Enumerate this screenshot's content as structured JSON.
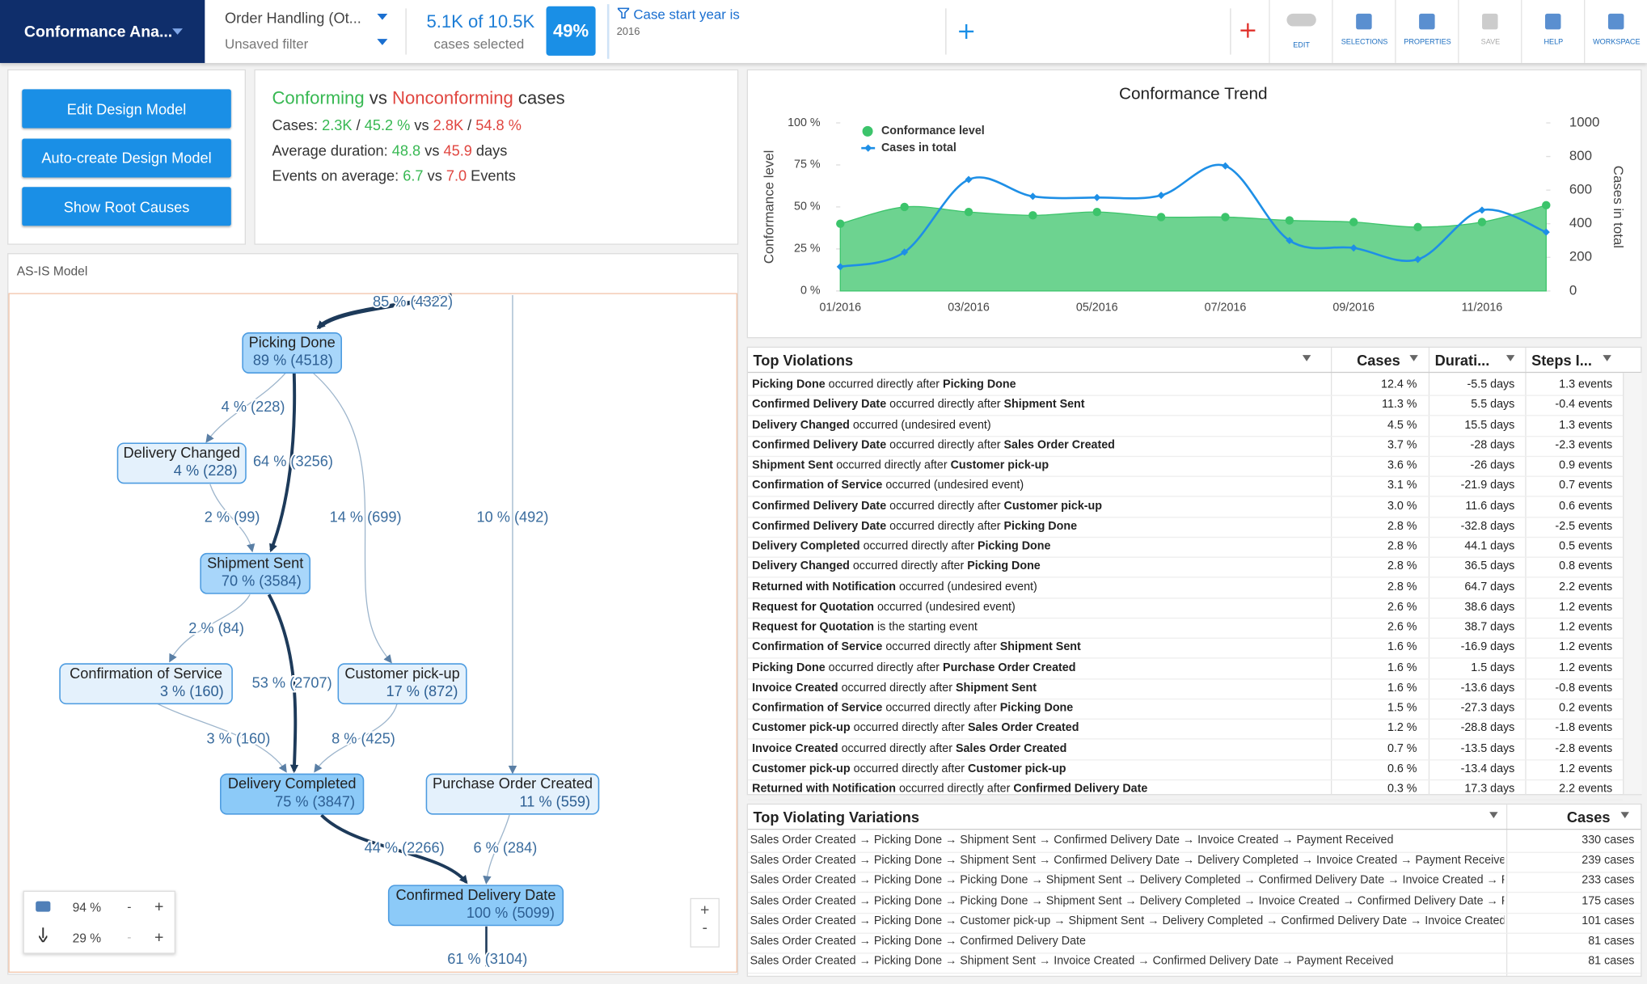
{
  "toolbar": {
    "app_title": "Conformance Ana...",
    "filter_name": "Order Handling (Ot...",
    "filter_state": "Unsaved filter",
    "cases": "5.1K of 10.5K",
    "cases_caption": "cases selected",
    "percent": "49%",
    "filter_label": "Case start year is",
    "filter_value": "2016",
    "buttons": [
      "EDIT",
      "SELECTIONS",
      "PROPERTIES",
      "SAVE",
      "HELP",
      "WORKSPACE"
    ]
  },
  "actions": [
    "Edit Design Model",
    "Auto-create Design Model",
    "Show Root Causes"
  ],
  "summary": {
    "conforming": "Conforming",
    "vs": "vs",
    "nonconforming": "Nonconforming",
    "suffix": "cases",
    "slash": "/",
    "rows": [
      {
        "label": "Cases:",
        "conforming": [
          "2.3K",
          "45.2 %"
        ],
        "nonconforming": [
          "2.8K",
          "54.8 %"
        ]
      },
      {
        "label": "Average duration:",
        "conforming": [
          "48.8"
        ],
        "nonconforming": [
          "45.9"
        ],
        "unit": "days"
      },
      {
        "label": "Events on average:",
        "conforming": [
          "6.7"
        ],
        "nonconforming": [
          "7.0"
        ],
        "unit": "Events"
      }
    ]
  },
  "model": {
    "title": "AS-IS Model",
    "nodes": [
      {
        "label": "Picking Done",
        "stat": "89 % (4518)"
      },
      {
        "label": "Delivery Changed",
        "stat": "4 % (228)"
      },
      {
        "label": "Shipment Sent",
        "stat": "70 % (3584)"
      },
      {
        "label": "Confirmation of Service",
        "stat": "3 % (160)"
      },
      {
        "label": "Customer pick-up",
        "stat": "17 % (872)"
      },
      {
        "label": "Delivery Completed",
        "stat": "75 % (3847)"
      },
      {
        "label": "Purchase Order Created",
        "stat": "11 % (559)"
      },
      {
        "label": "Confirmed Delivery Date",
        "stat": "100 % (5099)"
      }
    ],
    "edges": [
      "85 % (4322)",
      "4 % (228)",
      "64 % (3256)",
      "14 % (699)",
      "10 % (492)",
      "2 % (99)",
      "2 % (84)",
      "53 % (2707)",
      "3 % (160)",
      "8 % (425)",
      "44 % (2266)",
      "6 % (284)",
      "61 % (3104)"
    ],
    "controls": {
      "nodes_pct": "94 %",
      "edges_pct": "29 %",
      "minus": "-",
      "plus": "+"
    }
  },
  "chart_data": {
    "type": "line",
    "title": "Conformance Trend",
    "categories": [
      "01/2016",
      null,
      "03/2016",
      null,
      "05/2016",
      null,
      "07/2016",
      null,
      "09/2016",
      null,
      "11/2016",
      null
    ],
    "y_label": "Conformance level",
    "y2_label": "Cases in total",
    "legend": "upper left",
    "ylim": [
      0,
      100
    ],
    "yticks": [
      {
        "value": 0,
        "label": "0 %"
      },
      {
        "value": 25,
        "label": "25 %"
      },
      {
        "value": 50,
        "label": "50 %"
      },
      {
        "value": 75,
        "label": "75 %"
      },
      {
        "value": 100,
        "label": "100 %"
      }
    ],
    "y2lim": [
      0,
      1000
    ],
    "y2ticks": [
      0,
      200,
      400,
      600,
      800,
      1000
    ],
    "series": [
      {
        "name": "Conformance level",
        "color": "#3cc46b",
        "area": true,
        "values": [
          40,
          50,
          47,
          45,
          47,
          44,
          44,
          42,
          41,
          38,
          41,
          51
        ]
      },
      {
        "name": "Cases in total",
        "color": "#1e8fe6",
        "axis": "y2",
        "values": [
          144,
          231,
          663,
          563,
          556,
          569,
          744,
          300,
          256,
          188,
          481,
          350
        ]
      }
    ]
  },
  "violations": {
    "columns": [
      "Top Violations",
      "Cases",
      "Durati...",
      "Steps I..."
    ],
    "rows": [
      {
        "a": "Picking Done",
        "rel": "occurred directly after",
        "b": "Picking Done",
        "cases": "12.4 %",
        "duration": "-5.5 days",
        "steps": "1.3 events"
      },
      {
        "a": "Confirmed Delivery Date",
        "rel": "occurred directly after",
        "b": "Shipment Sent",
        "cases": "11.3 %",
        "duration": "5.5 days",
        "steps": "-0.4 events"
      },
      {
        "a": "Delivery Changed",
        "rel": "occurred (undesired event)",
        "cases": "4.5 %",
        "duration": "15.5 days",
        "steps": "1.3 events"
      },
      {
        "a": "Confirmed Delivery Date",
        "rel": "occurred directly after",
        "b": "Sales Order Created",
        "cases": "3.7 %",
        "duration": "-28 days",
        "steps": "-2.3 events"
      },
      {
        "a": "Shipment Sent",
        "rel": "occurred directly after",
        "b": "Customer pick-up",
        "cases": "3.6 %",
        "duration": "-26 days",
        "steps": "0.9 events"
      },
      {
        "a": "Confirmation of Service",
        "rel": "occurred (undesired event)",
        "cases": "3.1 %",
        "duration": "-21.9 days",
        "steps": "0.7 events"
      },
      {
        "a": "Confirmed Delivery Date",
        "rel": "occurred directly after",
        "b": "Customer pick-up",
        "cases": "3.0 %",
        "duration": "11.6 days",
        "steps": "0.6 events"
      },
      {
        "a": "Confirmed Delivery Date",
        "rel": "occurred directly after",
        "b": "Picking Done",
        "cases": "2.8 %",
        "duration": "-32.8 days",
        "steps": "-2.5 events"
      },
      {
        "a": "Delivery Completed",
        "rel": "occurred directly after",
        "b": "Picking Done",
        "cases": "2.8 %",
        "duration": "44.1 days",
        "steps": "0.5 events"
      },
      {
        "a": "Delivery Changed",
        "rel": "occurred directly after",
        "b": "Picking Done",
        "cases": "2.8 %",
        "duration": "36.5 days",
        "steps": "0.8 events"
      },
      {
        "a": "Returned with Notification",
        "rel": "occurred (undesired event)",
        "cases": "2.8 %",
        "duration": "64.7 days",
        "steps": "2.2 events"
      },
      {
        "a": "Request for Quotation",
        "rel": "occurred (undesired event)",
        "cases": "2.6 %",
        "duration": "38.6 days",
        "steps": "1.2 events"
      },
      {
        "a": "Request for Quotation",
        "rel": "is the starting event",
        "cases": "2.6 %",
        "duration": "38.7 days",
        "steps": "1.2 events"
      },
      {
        "a": "Confirmation of Service",
        "rel": "occurred directly after",
        "b": "Shipment Sent",
        "cases": "1.6 %",
        "duration": "-16.9 days",
        "steps": "1.2 events"
      },
      {
        "a": "Picking Done",
        "rel": "occurred directly after",
        "b": "Purchase Order Created",
        "cases": "1.6 %",
        "duration": "1.5 days",
        "steps": "1.2 events"
      },
      {
        "a": "Invoice Created",
        "rel": "occurred directly after",
        "b": "Shipment Sent",
        "cases": "1.6 %",
        "duration": "-13.6 days",
        "steps": "-0.8 events"
      },
      {
        "a": "Confirmation of Service",
        "rel": "occurred directly after",
        "b": "Picking Done",
        "cases": "1.5 %",
        "duration": "-27.3 days",
        "steps": "0.2 events"
      },
      {
        "a": "Customer pick-up",
        "rel": "occurred directly after",
        "b": "Sales Order Created",
        "cases": "1.2 %",
        "duration": "-28.8 days",
        "steps": "-1.8 events"
      },
      {
        "a": "Invoice Created",
        "rel": "occurred directly after",
        "b": "Sales Order Created",
        "cases": "0.7 %",
        "duration": "-13.5 days",
        "steps": "-2.8 events"
      },
      {
        "a": "Customer pick-up",
        "rel": "occurred directly after",
        "b": "Customer pick-up",
        "cases": "0.6 %",
        "duration": "-13.4 days",
        "steps": "1.2 events"
      },
      {
        "a": "Returned with Notification",
        "rel": "occurred directly after",
        "b": "Confirmed Delivery Date",
        "cases": "0.3 %",
        "duration": "17.3 days",
        "steps": "2.2 events"
      }
    ]
  },
  "variations": {
    "columns": [
      "Top Violating Variations",
      "Cases"
    ],
    "rows": [
      [
        "Sales Order Created → Picking Done → Shipment Sent → Confirmed Delivery Date → Invoice Created → Payment Received",
        "330 cases"
      ],
      [
        "Sales Order Created → Picking Done → Shipment Sent → Confirmed Delivery Date → Delivery Completed → Invoice Created → Payment Received",
        "239 cases"
      ],
      [
        "Sales Order Created → Picking Done → Picking Done → Shipment Sent → Delivery Completed → Confirmed Delivery Date → Invoice Created → Pa",
        "233 cases"
      ],
      [
        "Sales Order Created → Picking Done → Picking Done → Shipment Sent → Delivery Completed → Invoice Created → Confirmed Delivery Date → Pa",
        "175 cases"
      ],
      [
        "Sales Order Created → Picking Done → Customer pick-up → Shipment Sent → Delivery Completed → Confirmed Delivery Date → Invoice Created",
        "101 cases"
      ],
      [
        "Sales Order Created → Picking Done → Confirmed Delivery Date",
        "81 cases"
      ],
      [
        "Sales Order Created → Picking Done → Shipment Sent → Invoice Created → Confirmed Delivery Date → Payment Received",
        "81 cases"
      ]
    ]
  }
}
